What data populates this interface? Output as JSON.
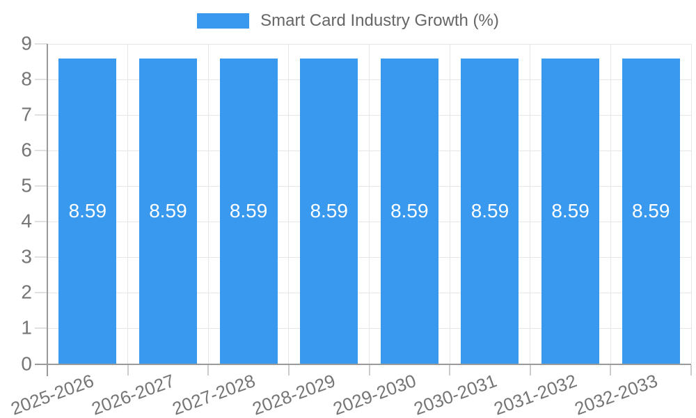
{
  "chart_data": {
    "type": "bar",
    "title": "",
    "categories": [
      "2025-2026",
      "2026-2027",
      "2027-2028",
      "2028-2029",
      "2029-2030",
      "2030-2031",
      "2031-2032",
      "2032-2033"
    ],
    "series": [
      {
        "name": "Smart Card Industry Growth (%)",
        "values": [
          8.59,
          8.59,
          8.59,
          8.59,
          8.59,
          8.59,
          8.59,
          8.59
        ]
      }
    ],
    "value_label_decimals": 2,
    "xlabel": "",
    "ylabel": "",
    "ylim": [
      0,
      9
    ],
    "y_ticks": [
      0,
      1,
      2,
      3,
      4,
      5,
      6,
      7,
      8,
      9
    ],
    "grid": "both",
    "legend_position": "top",
    "colors": {
      "bar": "#3999ee",
      "axis_line": "#9a9a9a",
      "gridline": "#e6e6e6",
      "y_tick_mark": "#e0e0e0",
      "x_tick_mark": "#cccccc",
      "tick_label": "#757575",
      "legend_text": "#666666",
      "bar_value_text": "#ffffff",
      "background": "#ffffff"
    }
  }
}
